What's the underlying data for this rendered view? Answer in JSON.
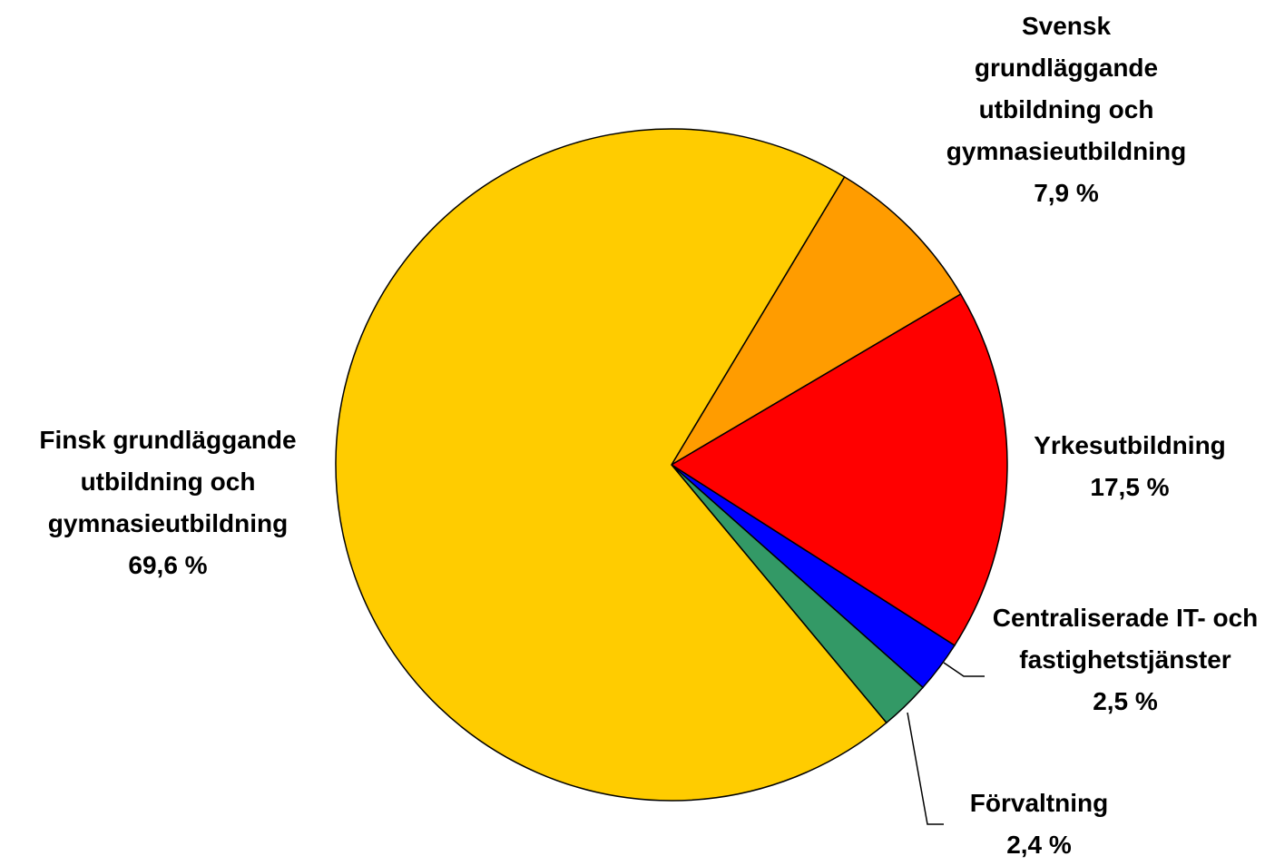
{
  "chart_data": {
    "type": "pie",
    "categories": [
      "Svensk grundläggande utbildning och gymnasieutbildning",
      "Yrkesutbildning",
      "Centraliserade IT- och fastighetstjänster",
      "Förvaltning",
      "Finsk grundläggande utbildning och gymnasieutbildning"
    ],
    "values": [
      7.9,
      17.5,
      2.5,
      2.4,
      69.6
    ],
    "value_labels": [
      "7,9 %",
      "17,5 %",
      "2,5 %",
      "2,4 %",
      "69,6 %"
    ],
    "colors": [
      "#ff9c00",
      "#ff0000",
      "#0000ff",
      "#339966",
      "#ffcc00"
    ]
  }
}
